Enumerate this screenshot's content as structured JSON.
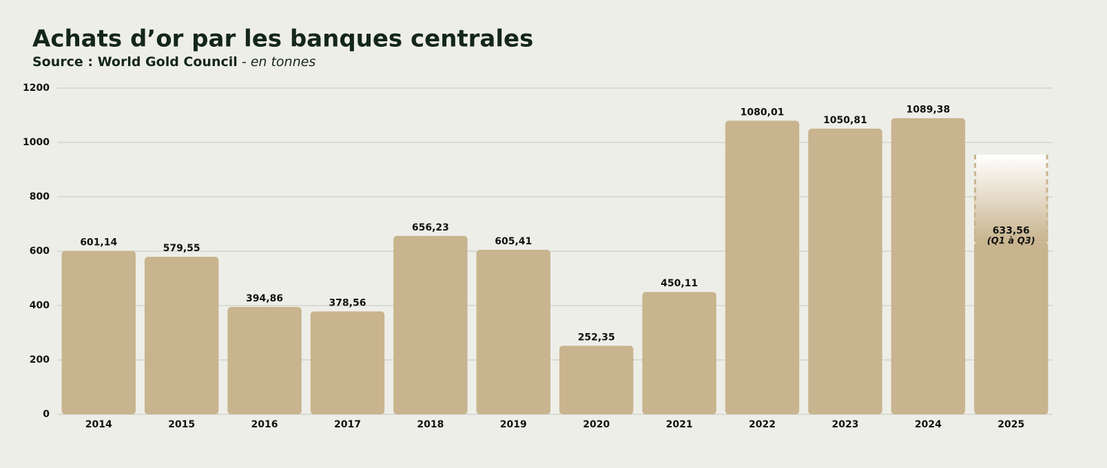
{
  "chart_data": {
    "type": "bar",
    "title": "Achats d’or par les banques centrales",
    "subtitle_source": "Source : World Gold Council",
    "subtitle_unit": "- en tonnes",
    "categories": [
      "2014",
      "2015",
      "2016",
      "2017",
      "2018",
      "2019",
      "2020",
      "2021",
      "2022",
      "2023",
      "2024",
      "2025"
    ],
    "values": [
      601.14,
      579.55,
      394.86,
      378.56,
      656.23,
      605.41,
      252.35,
      450.11,
      1080.01,
      1050.81,
      1089.38,
      633.56
    ],
    "value_labels": [
      "601,14",
      "579,55",
      "394,86",
      "378,56",
      "656,23",
      "605,41",
      "252,35",
      "450,11",
      "1080,01",
      "1050,81",
      "1089,38",
      "633,56"
    ],
    "projection_values": [
      null,
      null,
      null,
      null,
      null,
      null,
      null,
      null,
      null,
      null,
      null,
      955
    ],
    "annotation": "(Q1 à Q3)",
    "color": "#c8b48e",
    "ylim": [
      0,
      1200
    ],
    "yticks": [
      0,
      200,
      400,
      600,
      800,
      1000,
      1200
    ],
    "grid": true
  }
}
